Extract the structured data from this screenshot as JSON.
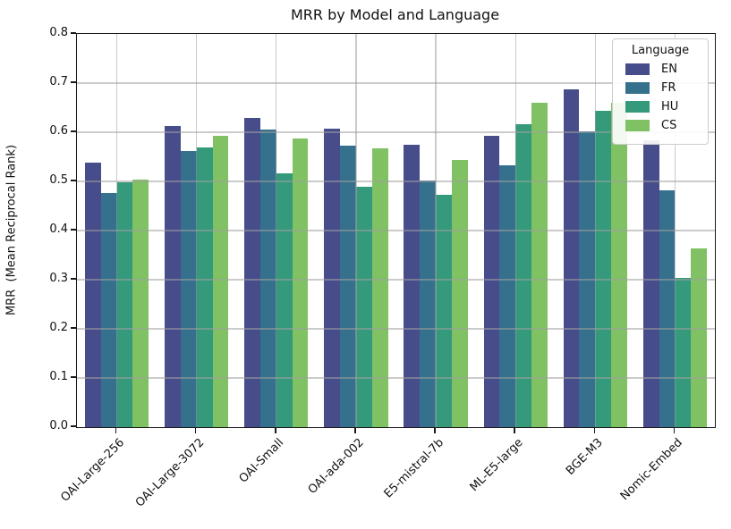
{
  "title": "MRR by Model and Language",
  "ylabel": "MRR  (Mean Reciprocal Rank)",
  "legend": {
    "title": "Language"
  },
  "chart_data": {
    "type": "bar",
    "title": "MRR by Model and Language",
    "xlabel": "",
    "ylabel": "MRR  (Mean Reciprocal Rank)",
    "categories": [
      "OAI-Large-256",
      "OAI-Large-3072",
      "OAI-Small",
      "OAI-ada-002",
      "E5-mistral-7b",
      "ML-E5-large",
      "BGE-M3",
      "Nomic-Embed"
    ],
    "series": [
      {
        "name": "EN",
        "color": "#474c8b",
        "values": [
          0.538,
          0.612,
          0.629,
          0.607,
          0.574,
          0.592,
          0.687,
          0.584
        ]
      },
      {
        "name": "FR",
        "color": "#35708c",
        "values": [
          0.477,
          0.561,
          0.605,
          0.573,
          0.501,
          0.533,
          0.602,
          0.481
        ]
      },
      {
        "name": "HU",
        "color": "#359a7b",
        "values": [
          0.498,
          0.57,
          0.517,
          0.49,
          0.472,
          0.617,
          0.644,
          0.304
        ]
      },
      {
        "name": "CS",
        "color": "#7fc163",
        "values": [
          0.504,
          0.593,
          0.588,
          0.568,
          0.544,
          0.66,
          0.66,
          0.363
        ]
      }
    ],
    "ylim": [
      0.0,
      0.8
    ],
    "yticks": [
      0.0,
      0.1,
      0.2,
      0.3,
      0.4,
      0.5,
      0.6,
      0.7,
      0.8
    ],
    "ytick_labels": [
      "0.0",
      "0.1",
      "0.2",
      "0.3",
      "0.4",
      "0.5",
      "0.6",
      "0.7",
      "0.8"
    ],
    "grid": true,
    "grid_on_top": true,
    "legend_position": "upper right",
    "bar_group_width_fraction": 0.8
  }
}
